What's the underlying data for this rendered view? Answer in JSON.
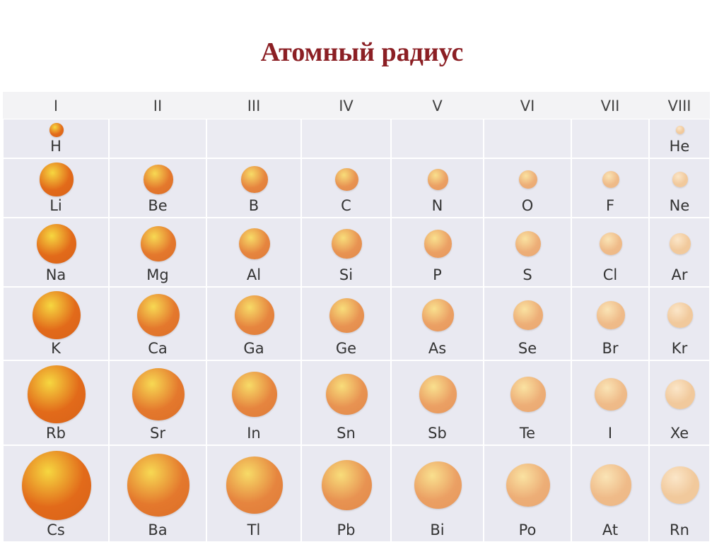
{
  "title": "Атомный радиус",
  "groups": [
    "I",
    "II",
    "III",
    "IV",
    "V",
    "VI",
    "VII",
    "VIII"
  ],
  "periods": [
    [
      "H",
      "",
      "",
      "",
      "",
      "",
      "",
      "He"
    ],
    [
      "Li",
      "Be",
      "B",
      "C",
      "N",
      "O",
      "F",
      "Ne"
    ],
    [
      "Na",
      "Mg",
      "Al",
      "Si",
      "P",
      "S",
      "Cl",
      "Ar"
    ],
    [
      "K",
      "Ca",
      "Ga",
      "Ge",
      "As",
      "Se",
      "Br",
      "Kr"
    ],
    [
      "Rb",
      "Sr",
      "In",
      "Sn",
      "Sb",
      "Te",
      "I",
      "Xe"
    ],
    [
      "Cs",
      "Ba",
      "Tl",
      "Pb",
      "Bi",
      "Po",
      "At",
      "Rn"
    ]
  ],
  "relative_atom_size": [
    [
      0.2,
      null,
      null,
      null,
      null,
      null,
      null,
      0.12
    ],
    [
      0.48,
      0.42,
      0.38,
      0.33,
      0.3,
      0.27,
      0.25,
      0.22
    ],
    [
      0.58,
      0.52,
      0.45,
      0.43,
      0.4,
      0.37,
      0.33,
      0.3
    ],
    [
      0.7,
      0.62,
      0.57,
      0.5,
      0.46,
      0.42,
      0.4,
      0.36
    ],
    [
      0.83,
      0.75,
      0.66,
      0.6,
      0.55,
      0.51,
      0.47,
      0.43
    ],
    [
      1.0,
      0.9,
      0.82,
      0.73,
      0.68,
      0.63,
      0.6,
      0.55
    ]
  ],
  "colors": {
    "title": "#8b1f24",
    "cell_bg": "#e9e9f1",
    "atom_dark": "#e26a1a",
    "atom_light": "#f1c99c",
    "highlight": "#f6d740"
  }
}
